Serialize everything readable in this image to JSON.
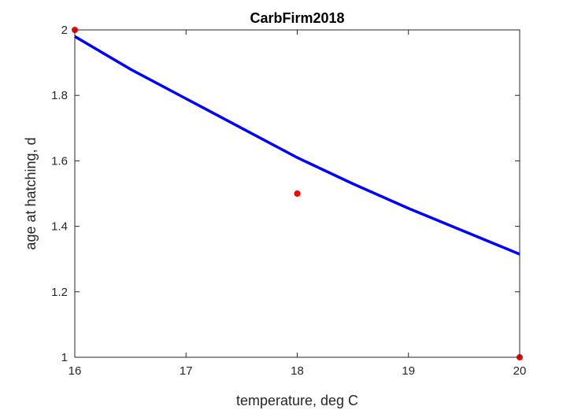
{
  "chart_data": {
    "type": "line",
    "title": "CarbFirm2018",
    "xlabel": "temperature, deg C",
    "ylabel": "age at hatching, d",
    "xlim": [
      16,
      20
    ],
    "ylim": [
      1,
      2
    ],
    "xticks": [
      16,
      17,
      18,
      19,
      20
    ],
    "yticks": [
      1,
      1.2,
      1.4,
      1.6,
      1.8,
      2
    ],
    "xtick_labels": [
      "16",
      "17",
      "18",
      "19",
      "20"
    ],
    "ytick_labels": [
      "1",
      "1.2",
      "1.4",
      "1.6",
      "1.8",
      "2"
    ],
    "grid": false,
    "legend": "none",
    "series": [
      {
        "type": "line",
        "color": "#0000ff",
        "x": [
          16,
          16.5,
          17,
          17.5,
          18,
          18.5,
          19,
          19.5,
          20
        ],
        "y": [
          1.98,
          1.88,
          1.79,
          1.7,
          1.61,
          1.53,
          1.455,
          1.385,
          1.315
        ]
      },
      {
        "type": "scatter",
        "color": "#ff0000",
        "x": [
          16,
          18,
          20
        ],
        "y": [
          2.0,
          1.5,
          1.0
        ]
      }
    ]
  }
}
